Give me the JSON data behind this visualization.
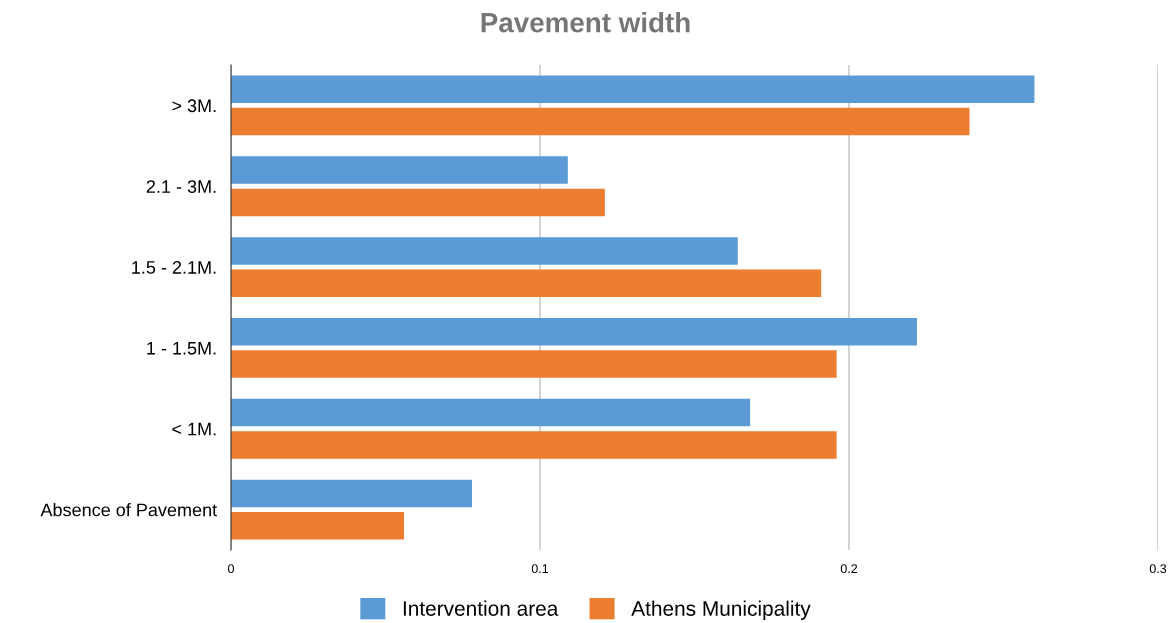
{
  "chart_data": {
    "type": "bar",
    "orientation": "horizontal",
    "title": "Pavement width",
    "categories": [
      "> 3M.",
      "2.1 - 3M.",
      "1.5 - 2.1M.",
      "1 - 1.5M.",
      "< 1M.",
      "Absence of Pavement"
    ],
    "series": [
      {
        "name": "Intervention area",
        "color": "#5b9bd5",
        "values": [
          0.26,
          0.109,
          0.164,
          0.222,
          0.168,
          0.078
        ]
      },
      {
        "name": "Athens Municipality",
        "color": "#ed7d31",
        "values": [
          0.239,
          0.121,
          0.191,
          0.196,
          0.196,
          0.056
        ]
      }
    ],
    "xlim": [
      0,
      0.3
    ],
    "xticks": [
      0,
      0.1,
      0.2,
      0.3
    ],
    "grid": "x",
    "legend": "bottom"
  }
}
